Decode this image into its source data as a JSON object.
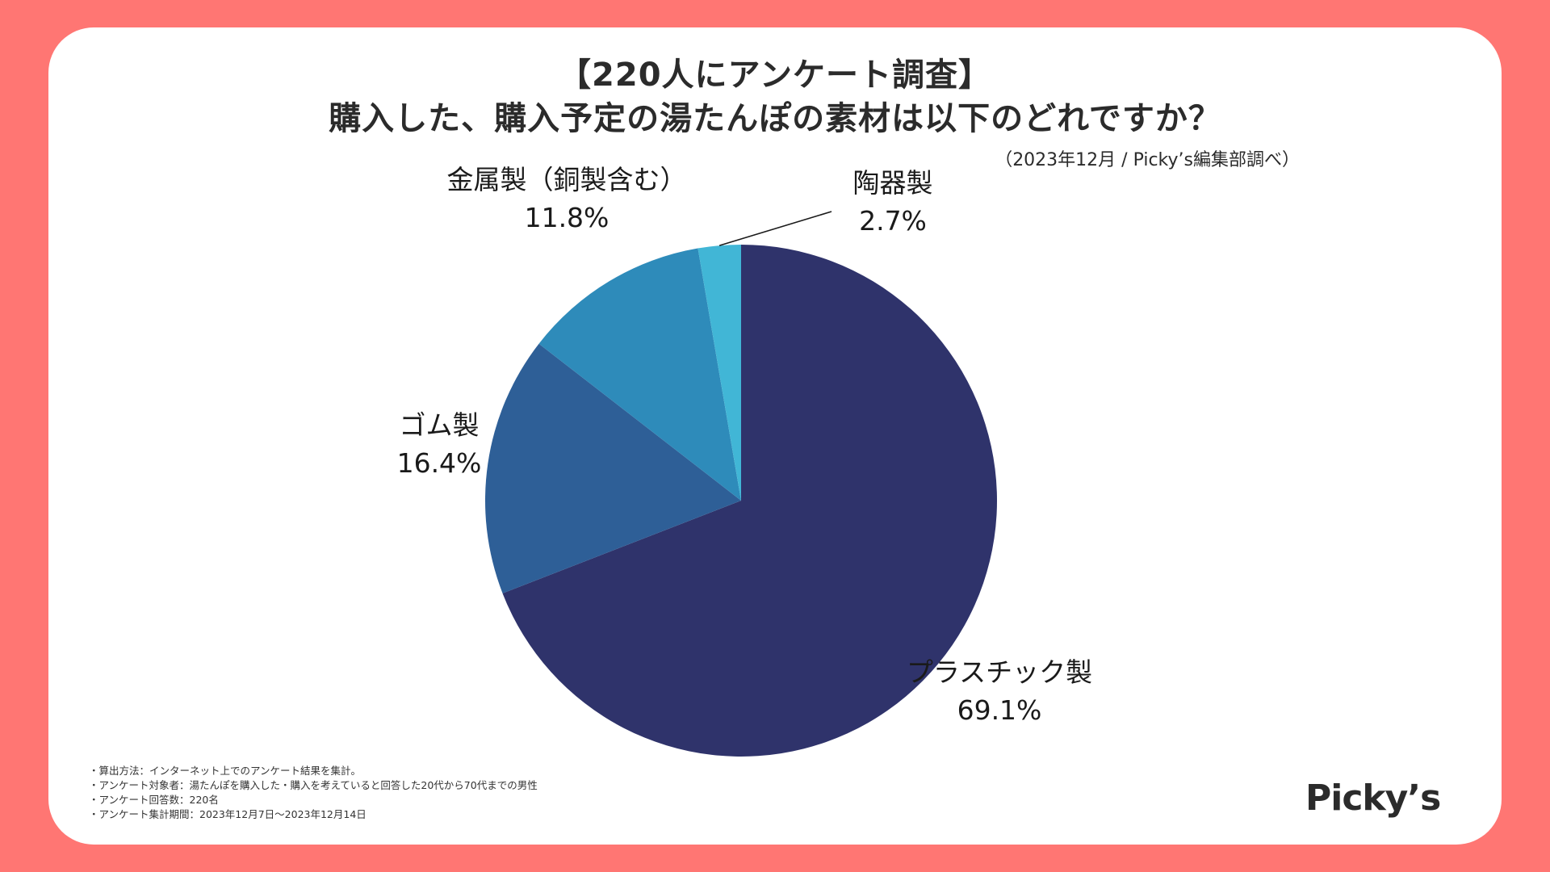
{
  "title_line1": "【220人にアンケート調査】",
  "title_line2": "購入した、購入予定の湯たんぽの素材は以下のどれですか？",
  "source": "（2023年12月 / Picky’s編集部調べ）",
  "notes": [
    "・算出方法：インターネット上でのアンケート結果を集計。",
    "・アンケート対象者：湯たんぽを購入した・購入を考えていると回答した20代から70代までの男性",
    "・アンケート回答数：220名",
    "・アンケート集計期間：2023年12月7日〜2023年12月14日"
  ],
  "logo": "Picky’s",
  "chart_data": {
    "type": "pie",
    "start": "12 o'clock",
    "direction": "clockwise",
    "slices": [
      {
        "name": "プラスチック製",
        "value": 69.1,
        "label": "69.1%",
        "color": "#2F336B"
      },
      {
        "name": "ゴム製",
        "value": 16.4,
        "label": "16.4%",
        "color": "#2E5F97"
      },
      {
        "name": "金属製（銅製含む）",
        "value": 11.8,
        "label": "11.8%",
        "color": "#2E8BBA"
      },
      {
        "name": "陶器製",
        "value": 2.7,
        "label": "2.7%",
        "color": "#41B6D6"
      }
    ]
  }
}
